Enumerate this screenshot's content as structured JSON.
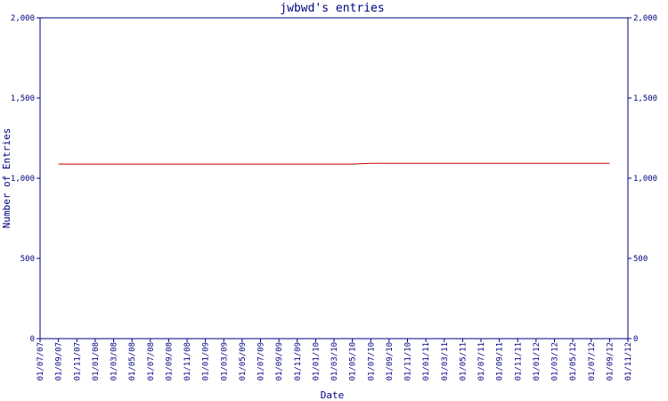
{
  "chart_data": {
    "type": "line",
    "title": "jwbwd's entries",
    "x_label": "Date",
    "y_label": "Number of Entries",
    "categories": [
      "01/07/07",
      "01/09/07",
      "01/11/07",
      "01/01/08",
      "01/03/08",
      "01/05/08",
      "01/07/08",
      "01/09/08",
      "01/11/08",
      "01/01/09",
      "01/03/09",
      "01/05/09",
      "01/07/09",
      "01/09/09",
      "01/11/09",
      "01/01/10",
      "01/03/10",
      "01/05/10",
      "01/07/10",
      "01/09/10",
      "01/11/10",
      "01/01/11",
      "01/03/11",
      "01/05/11",
      "01/07/11",
      "01/09/11",
      "01/11/11",
      "01/01/12",
      "01/03/12",
      "01/05/12",
      "01/07/12",
      "01/09/12",
      "01/11/12"
    ],
    "series": [
      {
        "name": "Entries",
        "color": "#cc0000",
        "values": [
          null,
          1088,
          1088,
          1088,
          1088,
          1088,
          1088,
          1088,
          1088,
          1088,
          1088,
          1088,
          1088,
          1088,
          1088,
          1088,
          1088,
          1088,
          1093,
          1093,
          1093,
          1093,
          1093,
          1093,
          1093,
          1093,
          1093,
          1093,
          1093,
          1093,
          1093,
          1093,
          null
        ]
      }
    ],
    "ylim": [
      0,
      2000
    ],
    "yticks": [
      0,
      500,
      {
        "value": 1000,
        "label": "1,000"
      },
      {
        "value": 1500,
        "label": "1,500"
      },
      {
        "value": 2000,
        "label": "2,000"
      }
    ],
    "y2lim": [
      0,
      2000
    ],
    "y2ticks": [
      0,
      500,
      {
        "value": 1000,
        "label": "1,000"
      },
      {
        "value": 1500,
        "label": "1,500"
      },
      {
        "value": 2000,
        "label": "2,000"
      }
    ],
    "axis_color": "#000080"
  }
}
